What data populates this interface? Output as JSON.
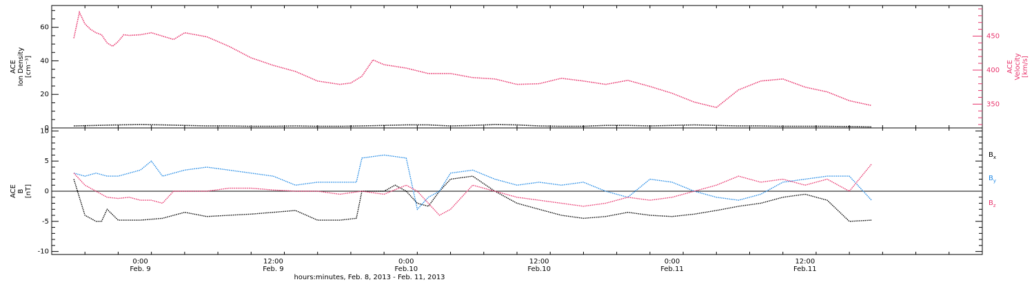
{
  "chart_data": [
    {
      "type": "scatter",
      "panel": "top",
      "ylabel_left": [
        "ACE",
        "Ion Density",
        "[cm⁻³]"
      ],
      "ylabel_right": [
        "ACE",
        "Velocity",
        "[km/s]"
      ],
      "ylim_left": [
        0,
        73
      ],
      "ylim_right": [
        315,
        495
      ],
      "yticks_left": [
        0,
        20,
        40,
        60
      ],
      "yticks_right": [
        350,
        400,
        450
      ],
      "yticks_right_labels": [
        "350",
        "400",
        "450"
      ],
      "legend": "none",
      "colors": {
        "density": "#000000",
        "velocity": "#e8326b"
      },
      "series": [
        {
          "name": "",
          "axis": "right",
          "x": [
            -6,
            -5.5,
            -5,
            -4.5,
            -4,
            -3.5,
            -3,
            -2.5,
            -2,
            -1.5,
            -1,
            0,
            1,
            2,
            3,
            4,
            6,
            8,
            10,
            12,
            14,
            16,
            18,
            19,
            20,
            21,
            22,
            24,
            26,
            28,
            30,
            32,
            34,
            36,
            38,
            40,
            42,
            44,
            46,
            48,
            50,
            52,
            54,
            56,
            58,
            60,
            62,
            64,
            66
          ],
          "values": [
            447,
            485,
            468,
            460,
            455,
            452,
            440,
            435,
            442,
            452,
            451,
            452,
            455,
            450,
            445,
            455,
            449,
            435,
            418,
            407,
            398,
            384,
            379,
            381,
            391,
            415,
            408,
            403,
            395,
            395,
            389,
            387,
            379,
            380,
            388,
            384,
            379,
            385,
            376,
            366,
            353,
            345,
            371,
            384,
            387,
            375,
            368,
            355,
            348
          ]
        },
        {
          "name": "",
          "axis": "left",
          "x": [
            -6,
            -4,
            -2,
            0,
            2,
            4,
            6,
            8,
            10,
            12,
            14,
            16,
            18,
            20,
            22,
            24,
            26,
            28,
            30,
            32,
            34,
            36,
            38,
            40,
            42,
            44,
            46,
            48,
            50,
            52,
            54,
            56,
            58,
            60,
            62,
            64,
            66
          ],
          "values": [
            1.2,
            1.5,
            1.8,
            2.0,
            1.8,
            1.5,
            1.2,
            1.2,
            1.0,
            1.0,
            1.2,
            1.0,
            1.0,
            1.2,
            1.5,
            1.8,
            1.8,
            1.2,
            1.5,
            2.0,
            1.8,
            1.2,
            1.0,
            1.0,
            1.5,
            1.5,
            1.2,
            1.5,
            1.8,
            1.5,
            1.2,
            1.2,
            1.0,
            1.0,
            1.0,
            0.8,
            0.6
          ]
        }
      ]
    },
    {
      "type": "scatter",
      "panel": "bottom",
      "ylabel": [
        "ACE",
        "B",
        "[nT]"
      ],
      "ylim": [
        -10.5,
        10.5
      ],
      "yticks": [
        -10,
        -5,
        0,
        5,
        10
      ],
      "zero_line": true,
      "legend": "right",
      "series": [
        {
          "name": "Bx",
          "color": "#000000",
          "x": [
            -6,
            -5,
            -4,
            -3.5,
            -3,
            -2,
            0,
            2,
            4,
            6,
            8,
            10,
            12,
            14,
            16,
            18,
            19.5,
            20,
            22,
            23,
            24,
            25,
            26,
            27,
            28,
            30,
            32,
            34,
            36,
            38,
            40,
            42,
            44,
            46,
            48,
            50,
            52,
            54,
            56,
            58,
            60,
            62,
            64,
            66
          ],
          "values": [
            2,
            -4,
            -5,
            -5,
            -3,
            -4.8,
            -4.8,
            -4.5,
            -3.5,
            -4.2,
            -4,
            -3.8,
            -3.5,
            -3.2,
            -4.8,
            -4.8,
            -4.5,
            0,
            0,
            1,
            0,
            -2,
            -2.5,
            0,
            2,
            2.5,
            0,
            -2,
            -3,
            -4,
            -4.5,
            -4.2,
            -3.5,
            -4,
            -4.2,
            -3.8,
            -3.2,
            -2.5,
            -2,
            -1,
            -0.5,
            -1.5,
            -5,
            -4.8
          ]
        },
        {
          "name": "By",
          "color": "#1e88e5",
          "x": [
            -6,
            -5,
            -4,
            -3,
            -2,
            -1,
            0,
            1,
            2,
            3,
            4,
            6,
            8,
            10,
            12,
            14,
            16,
            18,
            19.5,
            20,
            22,
            24,
            25,
            26,
            27,
            28,
            30,
            32,
            34,
            36,
            38,
            40,
            42,
            44,
            46,
            48,
            50,
            52,
            54,
            56,
            58,
            60,
            62,
            64,
            66
          ],
          "values": [
            3,
            2.5,
            3,
            2.5,
            2.5,
            3,
            3.5,
            5,
            2.5,
            3,
            3.5,
            4,
            3.5,
            3,
            2.5,
            1,
            1.5,
            1.5,
            1.5,
            5.5,
            6,
            5.5,
            -3,
            -1,
            0,
            3,
            3.5,
            2,
            1,
            1.5,
            1,
            1.5,
            0,
            -1,
            2,
            1.5,
            0,
            -1,
            -1.5,
            -0.5,
            1.5,
            2,
            2.5,
            2.5,
            -1.5
          ]
        },
        {
          "name": "Bz",
          "color": "#e8326b",
          "x": [
            -6,
            -5,
            -4,
            -3,
            -2,
            -1,
            0,
            1,
            2,
            3,
            4,
            6,
            8,
            10,
            12,
            14,
            16,
            18,
            20,
            22,
            24,
            25,
            26,
            27,
            28,
            30,
            32,
            34,
            36,
            38,
            40,
            42,
            44,
            46,
            48,
            50,
            52,
            54,
            56,
            58,
            60,
            62,
            64,
            66
          ],
          "values": [
            3,
            1,
            0,
            -1,
            -1.2,
            -1,
            -1.5,
            -1.5,
            -2,
            0,
            0,
            0,
            0.5,
            0.5,
            0.2,
            0,
            0,
            -0.5,
            0,
            -0.5,
            1,
            0,
            -2,
            -4,
            -3,
            1,
            0,
            -1,
            -1.5,
            -2,
            -2.5,
            -2,
            -1,
            -1.5,
            -1,
            0,
            1,
            2.5,
            1.5,
            2,
            1,
            2,
            0,
            4.5
          ]
        }
      ]
    }
  ],
  "x_axis": {
    "range_hours": [
      -8,
      76
    ],
    "ticks": [
      {
        "x": 0,
        "line1": "0:00",
        "line2": "Feb. 9"
      },
      {
        "x": 12,
        "line1": "12:00",
        "line2": "Feb. 9"
      },
      {
        "x": 24,
        "line1": "0:00",
        "line2": "Feb.10"
      },
      {
        "x": 36,
        "line1": "12:00",
        "line2": "Feb.10"
      },
      {
        "x": 48,
        "line1": "0:00",
        "line2": "Feb.11"
      },
      {
        "x": 60,
        "line1": "12:00",
        "line2": "Feb.11"
      }
    ],
    "xlabel": "hours:minutes, Feb.  8, 2013 - Feb. 11, 2013"
  }
}
